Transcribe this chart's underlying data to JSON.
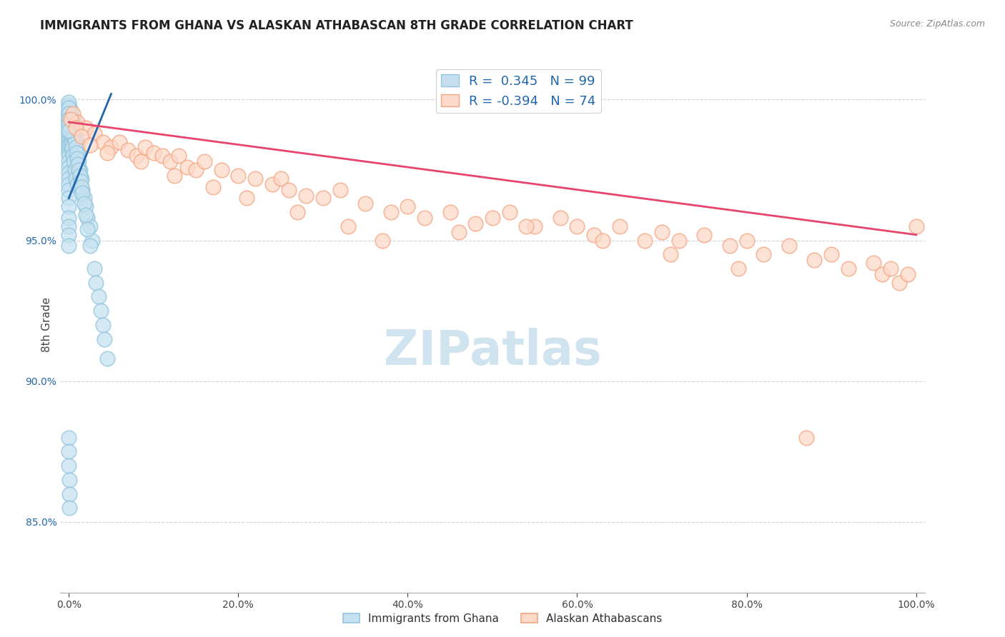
{
  "title": "IMMIGRANTS FROM GHANA VS ALASKAN ATHABASCAN 8TH GRADE CORRELATION CHART",
  "source": "Source: ZipAtlas.com",
  "xlabel_bottom": "Immigrants from Ghana",
  "xlabel_bottom2": "Alaskan Athabascans",
  "ylabel": "8th Grade",
  "blue_R": 0.345,
  "blue_N": 99,
  "pink_R": -0.394,
  "pink_N": 74,
  "blue_color": "#92c5de",
  "blue_fill_color": "#c6e2f0",
  "blue_line_color": "#2166ac",
  "pink_color": "#f4a582",
  "pink_fill_color": "#fdd9c9",
  "pink_line_color": "#e8436a",
  "background_color": "#ffffff",
  "grid_color": "#c8c8c8",
  "xlim": [
    -1.0,
    101.0
  ],
  "ylim": [
    82.5,
    101.5
  ],
  "yticks": [
    85.0,
    90.0,
    95.0,
    100.0
  ],
  "ytick_labels": [
    "85.0%",
    "90.0%",
    "95.0%",
    "100.0%"
  ],
  "xticks": [
    0.0,
    20.0,
    40.0,
    60.0,
    80.0,
    100.0
  ],
  "xtick_labels": [
    "0.0%",
    "20.0%",
    "40.0%",
    "60.0%",
    "80.0%",
    "100.0%"
  ],
  "blue_scatter_x": [
    0.0,
    0.0,
    0.0,
    0.0,
    0.0,
    0.0,
    0.0,
    0.0,
    0.0,
    0.0,
    0.0,
    0.0,
    0.0,
    0.0,
    0.0,
    0.0,
    0.0,
    0.0,
    0.0,
    0.0,
    0.0,
    0.0,
    0.0,
    0.0,
    0.0,
    0.0,
    0.0,
    0.0,
    0.0,
    0.0,
    0.2,
    0.2,
    0.2,
    0.3,
    0.3,
    0.3,
    0.4,
    0.4,
    0.5,
    0.5,
    0.5,
    0.6,
    0.6,
    0.7,
    0.7,
    0.8,
    0.8,
    0.9,
    1.0,
    1.0,
    1.1,
    1.2,
    1.3,
    1.5,
    1.6,
    1.8,
    2.0,
    2.2,
    2.5,
    2.8,
    0.1,
    0.1,
    0.2,
    0.3,
    0.4,
    0.5,
    0.6,
    0.7,
    0.8,
    0.9,
    1.0,
    1.1,
    1.2,
    1.3,
    1.4,
    1.5,
    1.6,
    1.8,
    2.0,
    2.2,
    2.5,
    3.0,
    3.2,
    3.5,
    3.8,
    4.0,
    4.2,
    4.5,
    0.0,
    0.0,
    0.0,
    0.0,
    0.0,
    0.0,
    0.0,
    0.0,
    0.0,
    0.1,
    0.1,
    0.1
  ],
  "blue_scatter_y": [
    99.8,
    99.6,
    99.5,
    99.4,
    99.3,
    99.2,
    99.1,
    99.0,
    98.9,
    98.8,
    98.7,
    98.6,
    98.5,
    98.4,
    98.3,
    98.2,
    98.1,
    98.0,
    97.8,
    97.6,
    97.4,
    97.2,
    97.0,
    96.8,
    96.5,
    96.2,
    95.8,
    95.5,
    95.2,
    94.8,
    99.5,
    99.2,
    98.8,
    99.0,
    98.5,
    98.2,
    98.7,
    98.3,
    99.1,
    98.8,
    98.0,
    99.3,
    97.8,
    98.9,
    97.5,
    99.0,
    97.2,
    98.6,
    98.4,
    97.0,
    98.1,
    97.8,
    97.5,
    97.2,
    96.8,
    96.5,
    96.2,
    95.8,
    95.5,
    95.0,
    99.7,
    99.4,
    99.6,
    99.3,
    99.1,
    98.9,
    98.7,
    98.5,
    98.3,
    98.1,
    97.9,
    97.7,
    97.5,
    97.3,
    97.1,
    96.9,
    96.7,
    96.3,
    95.9,
    95.4,
    94.8,
    94.0,
    93.5,
    93.0,
    92.5,
    92.0,
    91.5,
    90.8,
    99.9,
    99.7,
    99.5,
    99.3,
    99.1,
    98.9,
    88.0,
    87.5,
    87.0,
    86.5,
    86.0,
    85.5
  ],
  "pink_scatter_x": [
    0.5,
    1.0,
    2.0,
    3.0,
    4.0,
    5.0,
    6.0,
    7.0,
    8.0,
    9.0,
    10.0,
    11.0,
    12.0,
    13.0,
    14.0,
    15.0,
    16.0,
    18.0,
    20.0,
    22.0,
    24.0,
    25.0,
    26.0,
    28.0,
    30.0,
    32.0,
    35.0,
    38.0,
    40.0,
    42.0,
    45.0,
    48.0,
    50.0,
    52.0,
    55.0,
    58.0,
    60.0,
    62.0,
    65.0,
    68.0,
    70.0,
    72.0,
    75.0,
    78.0,
    80.0,
    82.0,
    85.0,
    88.0,
    90.0,
    92.0,
    95.0,
    96.0,
    97.0,
    98.0,
    99.0,
    100.0,
    0.2,
    0.8,
    1.5,
    2.5,
    4.5,
    8.5,
    12.5,
    17.0,
    21.0,
    27.0,
    33.0,
    37.0,
    46.0,
    54.0,
    63.0,
    71.0,
    79.0,
    87.0
  ],
  "pink_scatter_y": [
    99.5,
    99.2,
    99.0,
    98.8,
    98.5,
    98.3,
    98.5,
    98.2,
    98.0,
    98.3,
    98.1,
    98.0,
    97.8,
    98.0,
    97.6,
    97.5,
    97.8,
    97.5,
    97.3,
    97.2,
    97.0,
    97.2,
    96.8,
    96.6,
    96.5,
    96.8,
    96.3,
    96.0,
    96.2,
    95.8,
    96.0,
    95.6,
    95.8,
    96.0,
    95.5,
    95.8,
    95.5,
    95.2,
    95.5,
    95.0,
    95.3,
    95.0,
    95.2,
    94.8,
    95.0,
    94.5,
    94.8,
    94.3,
    94.5,
    94.0,
    94.2,
    93.8,
    94.0,
    93.5,
    93.8,
    95.5,
    99.3,
    99.0,
    98.7,
    98.4,
    98.1,
    97.8,
    97.3,
    96.9,
    96.5,
    96.0,
    95.5,
    95.0,
    95.3,
    95.5,
    95.0,
    94.5,
    94.0,
    88.0
  ],
  "blue_trend_x": [
    0.0,
    5.0
  ],
  "blue_trend_y": [
    96.5,
    100.2
  ],
  "pink_trend_x": [
    0.0,
    100.0
  ],
  "pink_trend_y": [
    99.2,
    95.2
  ],
  "watermark": "ZIPatlas",
  "watermark_color": "#d0e4f0"
}
